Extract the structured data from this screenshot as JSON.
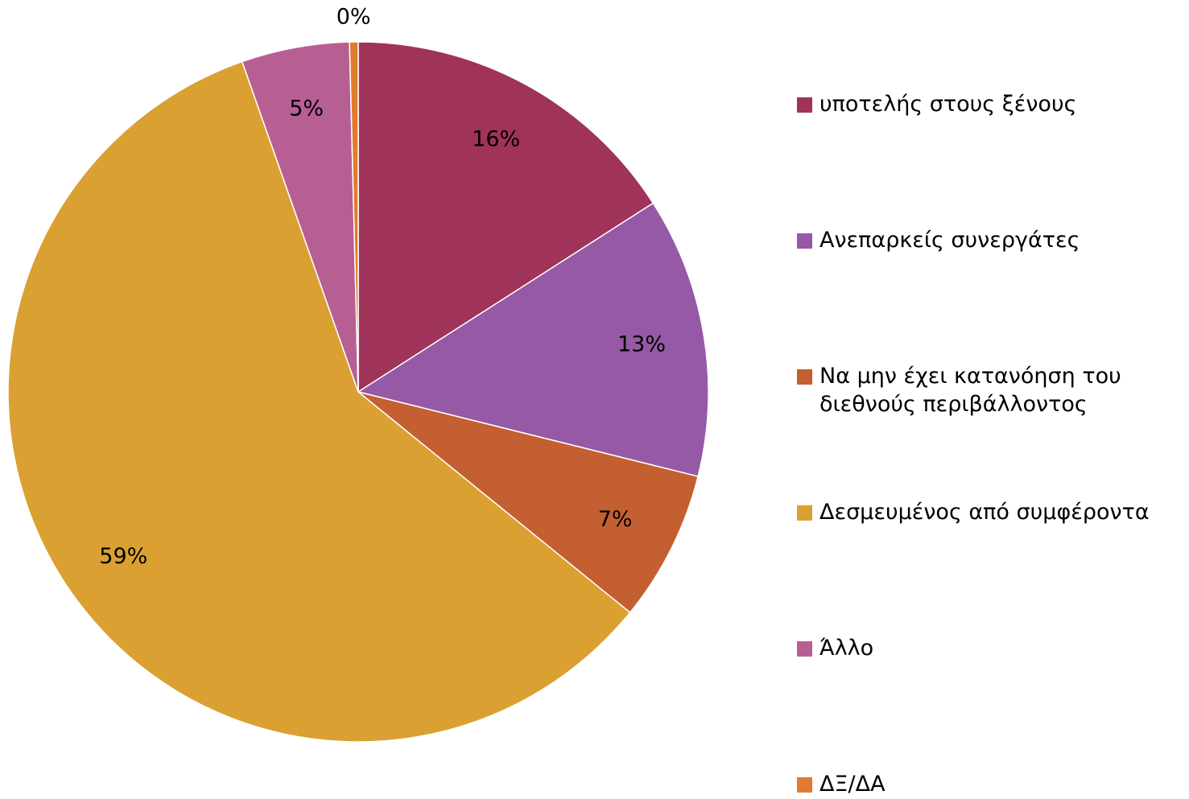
{
  "chart_data": {
    "type": "pie",
    "categories": [
      "υποτελής στους ξένους",
      "Ανεπαρκείς συνεργάτες",
      "Να μην έχει κατανόηση του διεθνούς περιβάλλοντος",
      "Δεσμευμένος από συμφέροντα",
      "Άλλο",
      "ΔΞ/ΔΑ"
    ],
    "values": [
      16,
      13,
      7,
      59,
      5,
      0.4
    ],
    "value_labels": [
      "16%",
      "13%",
      "7%",
      "59%",
      "5%",
      "0%"
    ],
    "colors": [
      "#A0335A",
      "#9559A5",
      "#C35F31",
      "#DBA032",
      "#B75F93",
      "#E07B2F"
    ],
    "legend": "right"
  }
}
